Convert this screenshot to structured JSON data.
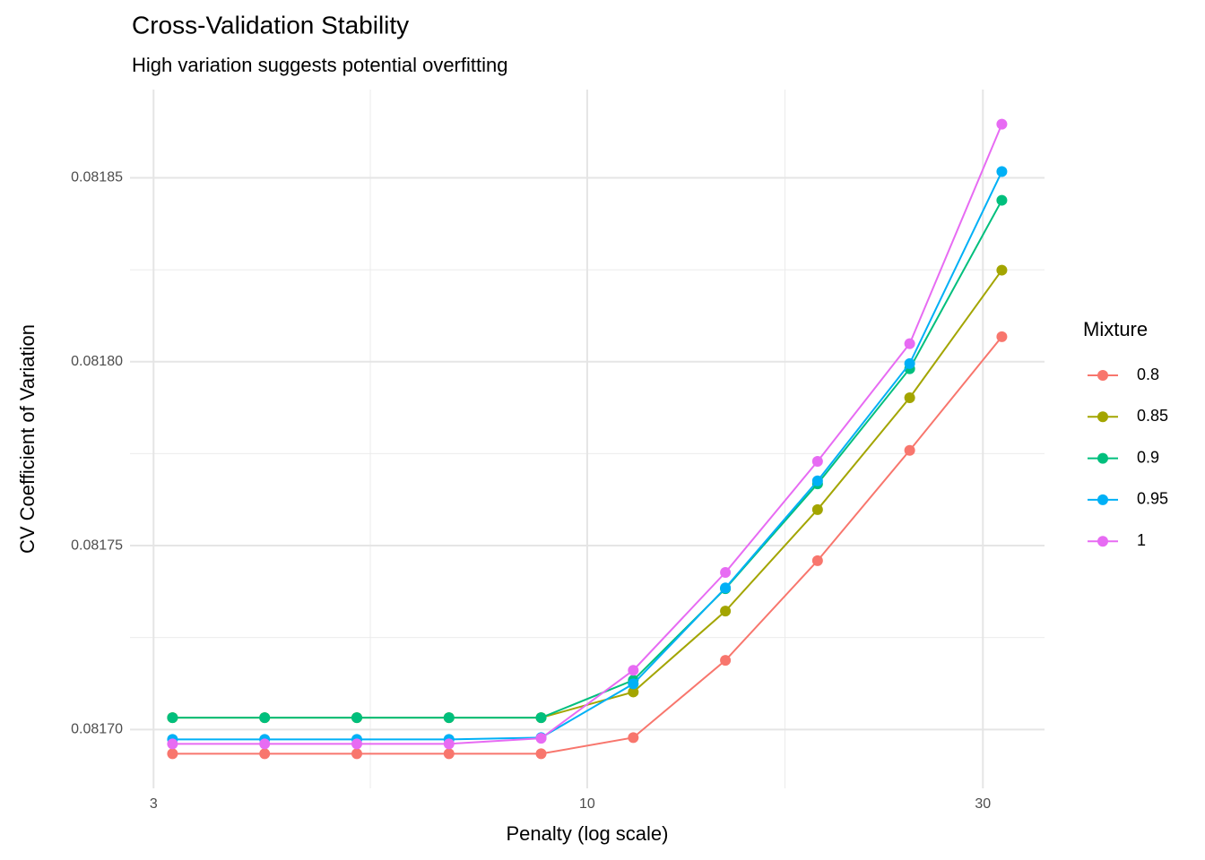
{
  "chart_data": {
    "type": "line",
    "title": "Cross-Validation Stability",
    "subtitle": "High variation suggests potential overfitting",
    "x_label": "Penalty (log scale)",
    "y_label": "CV Coefficient of Variation",
    "legend_title": "Mixture",
    "x_log": true,
    "x": [
      3.162,
      4.084,
      5.275,
      6.813,
      8.799,
      11.365,
      14.678,
      18.957,
      24.484,
      31.623
    ],
    "xlim": [
      2.81,
      35.6
    ],
    "xticks": [
      3,
      10,
      30
    ],
    "x_minor_ticks": [
      5.477,
      17.32
    ],
    "ylim": [
      0.081684,
      0.081874
    ],
    "yticks": [
      {
        "value": 0.0817,
        "label": "0.08170"
      },
      0.08175,
      {
        "value": 0.0818,
        "label": "0.08180"
      },
      0.08185
    ],
    "y_minor_ticks": [
      0.081725,
      0.081775,
      0.081825
    ],
    "grid": true,
    "legend_position": "right",
    "series": [
      {
        "name": "0.8",
        "color": "#F8766D",
        "values": [
          0.0816934,
          0.0816934,
          0.0816934,
          0.0816934,
          0.0816934,
          0.0816978,
          0.0817188,
          0.0817459,
          0.0817759,
          0.0818068
        ]
      },
      {
        "name": "0.85",
        "color": "#A3A500",
        "values": [
          0.0817032,
          0.0817032,
          0.0817032,
          0.0817032,
          0.0817032,
          0.0817102,
          0.0817322,
          0.0817598,
          0.0817902,
          0.0818249
        ]
      },
      {
        "name": "0.9",
        "color": "#00BF7D",
        "values": [
          0.0817032,
          0.0817032,
          0.0817032,
          0.0817032,
          0.0817032,
          0.0817134,
          0.0817383,
          0.0817668,
          0.0817981,
          0.0818439
        ]
      },
      {
        "name": "0.95",
        "color": "#00B0F6",
        "values": [
          0.0816973,
          0.0816973,
          0.0816973,
          0.0816973,
          0.0816978,
          0.0817124,
          0.0817385,
          0.0817676,
          0.0817995,
          0.0818517
        ]
      },
      {
        "name": "1",
        "color": "#E76BF3",
        "values": [
          0.0816961,
          0.0816961,
          0.0816961,
          0.0816961,
          0.0816976,
          0.0817161,
          0.0817427,
          0.0817729,
          0.0818049,
          0.0818646
        ]
      }
    ]
  }
}
